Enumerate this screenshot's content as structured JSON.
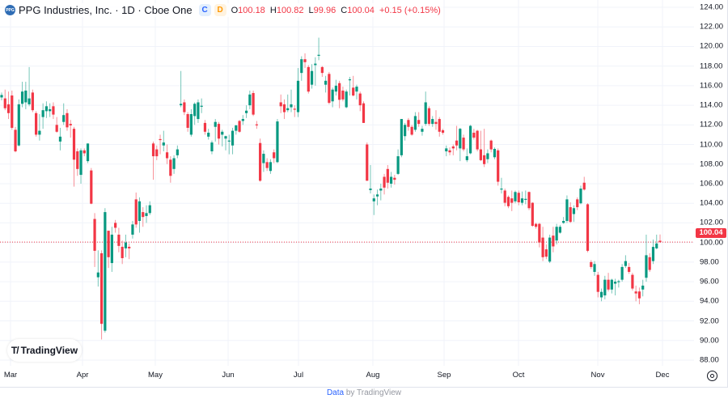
{
  "header": {
    "logo_text": "PPG",
    "title": "PPG Industries, Inc. · 1D · Cboe One",
    "badge_c": "C",
    "badge_d": "D",
    "ohlc": {
      "o_label": "O",
      "o": "100.18",
      "h_label": "H",
      "h": "100.82",
      "l_label": "L",
      "l": "99.96",
      "c_label": "C",
      "c": "100.04",
      "change": "+0.15 (+0.15%)"
    }
  },
  "price_tag": "100.04",
  "watermark": "TradingView",
  "footer": {
    "link": "Data",
    "rest": "by TradingView"
  },
  "colors": {
    "up": "#089981",
    "down": "#f23645",
    "grid": "#f0f3fa",
    "last_price": "#f23645"
  },
  "chart_data": {
    "type": "candlestick",
    "interval": "1D",
    "ylim": [
      88,
      124
    ],
    "y_ticks": [
      "124.00",
      "122.00",
      "120.00",
      "118.00",
      "116.00",
      "114.00",
      "112.00",
      "110.00",
      "108.00",
      "106.00",
      "104.00",
      "102.00",
      "100.00",
      "98.00",
      "96.00",
      "94.00",
      "92.00",
      "90.00",
      "88.00"
    ],
    "x_ticks": [
      "Mar",
      "Apr",
      "May",
      "Jun",
      "Jul",
      "Aug",
      "Sep",
      "Oct",
      "Nov",
      "Dec"
    ],
    "last_price": 100.04,
    "grid": true,
    "ohlc": [
      [
        114.8,
        115.3,
        114.5,
        115.05
      ],
      [
        114.7,
        115.6,
        113.5,
        113.7
      ],
      [
        114.1,
        115.4,
        112.6,
        113.2
      ],
      [
        115.0,
        115.5,
        111.5,
        111.7
      ],
      [
        111.5,
        111.8,
        109.2,
        109.3
      ],
      [
        109.9,
        114.6,
        109.8,
        114.1
      ],
      [
        114.15,
        116.4,
        113.8,
        115.4
      ],
      [
        114.3,
        116.4,
        113.6,
        115.5
      ],
      [
        114.1,
        117.9,
        113.9,
        114.7
      ],
      [
        115.3,
        115.6,
        113.3,
        113.5
      ],
      [
        113.2,
        113.4,
        110.8,
        111.0
      ],
      [
        111.0,
        113.1,
        110.4,
        111.4
      ],
      [
        112.8,
        114.2,
        111.6,
        113.5
      ],
      [
        113.4,
        114.4,
        112.7,
        113.9
      ],
      [
        113.4,
        114.2,
        112.8,
        113.6
      ],
      [
        113.9,
        114.3,
        112.6,
        113.05
      ],
      [
        112.0,
        112.8,
        111.2,
        111.3
      ],
      [
        110.3,
        111.7,
        109.4,
        110.8
      ],
      [
        112.3,
        114.2,
        112.0,
        113.0
      ],
      [
        113.2,
        113.6,
        111.4,
        111.75
      ],
      [
        112.1,
        112.5,
        110.7,
        111.95
      ],
      [
        111.6,
        111.8,
        105.7,
        108.45
      ],
      [
        109.3,
        109.6,
        106.8,
        107.5
      ],
      [
        106.9,
        109.6,
        106.0,
        109.4
      ],
      [
        109.4,
        109.6,
        108.8,
        109.1
      ],
      [
        108.3,
        110.1,
        108.1,
        110.1
      ],
      [
        107.35,
        107.6,
        103.9,
        103.96
      ],
      [
        102.4,
        103.0,
        97.5,
        99.15
      ],
      [
        96.45,
        99.2,
        95.5,
        96.94
      ],
      [
        98.9,
        99.2,
        90.1,
        91.7
      ],
      [
        91.0,
        103.5,
        90.8,
        103.1
      ],
      [
        101.2,
        101.2,
        97.4,
        98.5
      ],
      [
        97.9,
        101.6,
        97.0,
        100.8
      ],
      [
        102.0,
        102.3,
        101.0,
        101.5
      ],
      [
        100.8,
        101.5,
        99.0,
        99.65
      ],
      [
        99.56,
        100.2,
        97.8,
        98.4
      ],
      [
        99.4,
        100.8,
        98.5,
        100.0
      ],
      [
        99.56,
        99.9,
        98.3,
        99.4
      ],
      [
        100.8,
        102.2,
        100.4,
        101.84
      ],
      [
        104.4,
        105.1,
        101.5,
        101.84
      ],
      [
        102.2,
        104.6,
        101.0,
        104.2
      ],
      [
        103.1,
        103.6,
        101.6,
        102.6
      ],
      [
        102.7,
        103.8,
        102.0,
        103.0
      ],
      [
        103.0,
        104.2,
        102.8,
        103.8
      ],
      [
        110.1,
        110.3,
        106.4,
        108.8
      ],
      [
        109.5,
        109.9,
        108.4,
        108.8
      ],
      [
        110.55,
        111.0,
        109.0,
        110.45
      ],
      [
        109.9,
        111.4,
        109.3,
        110.2
      ],
      [
        109.2,
        110.0,
        108.0,
        108.6
      ],
      [
        108.45,
        108.8,
        106.1,
        106.8
      ],
      [
        107.5,
        108.9,
        107.0,
        108.6
      ],
      [
        108.9,
        109.9,
        108.6,
        109.5
      ],
      [
        114.0,
        117.5,
        113.8,
        114.15
      ],
      [
        114.3,
        114.6,
        113.0,
        113.3
      ],
      [
        113.1,
        113.3,
        111.3,
        111.7
      ],
      [
        111.0,
        113.6,
        110.8,
        113.1
      ],
      [
        112.9,
        114.3,
        112.0,
        114.15
      ],
      [
        112.6,
        114.6,
        112.2,
        114.3
      ],
      [
        113.85,
        114.7,
        113.2,
        113.95
      ],
      [
        112.2,
        112.5,
        111.0,
        111.3
      ],
      [
        110.8,
        111.6,
        110.5,
        111.2
      ],
      [
        109.3,
        110.4,
        109.0,
        110.2
      ],
      [
        111.8,
        112.6,
        110.3,
        112.3
      ],
      [
        112.1,
        112.3,
        110.0,
        110.6
      ],
      [
        111.0,
        111.5,
        109.8,
        111.3
      ],
      [
        110.6,
        110.9,
        109.4,
        110.85
      ],
      [
        110.3,
        111.0,
        109.0,
        110.4
      ],
      [
        109.9,
        111.7,
        109.0,
        111.4
      ],
      [
        111.4,
        112.0,
        111.0,
        111.95
      ],
      [
        112.4,
        112.5,
        111.2,
        111.3
      ],
      [
        112.4,
        113.0,
        112.0,
        112.6
      ],
      [
        113.2,
        114.0,
        112.7,
        113.45
      ],
      [
        114.0,
        115.5,
        113.6,
        115.1
      ],
      [
        115.25,
        115.5,
        112.9,
        113.05
      ],
      [
        112.05,
        112.4,
        111.6,
        111.95
      ],
      [
        110.15,
        110.6,
        106.2,
        106.3
      ],
      [
        108.1,
        109.4,
        107.2,
        109.05
      ],
      [
        108.2,
        108.6,
        107.3,
        107.6
      ],
      [
        107.3,
        108.5,
        107.0,
        108.2
      ],
      [
        109.2,
        109.5,
        108.1,
        108.6
      ],
      [
        108.2,
        112.6,
        108.1,
        112.35
      ],
      [
        114.3,
        115.1,
        113.2,
        113.9
      ],
      [
        114.1,
        114.6,
        112.6,
        113.3
      ],
      [
        113.5,
        115.1,
        113.3,
        113.7
      ],
      [
        113.8,
        115.6,
        113.3,
        114.1
      ],
      [
        113.65,
        114.0,
        112.8,
        113.55
      ],
      [
        113.3,
        117.8,
        112.8,
        116.5
      ],
      [
        117.3,
        119.0,
        116.5,
        118.7
      ],
      [
        118.7,
        119.3,
        117.8,
        118.4
      ],
      [
        117.9,
        118.1,
        115.2,
        115.4
      ],
      [
        116.1,
        118.2,
        115.7,
        117.5
      ],
      [
        118.1,
        118.9,
        116.0,
        118.25
      ],
      [
        119.05,
        120.9,
        118.6,
        119.15
      ],
      [
        117.9,
        118.0,
        116.9,
        117.3
      ],
      [
        116.1,
        117.0,
        115.3,
        116.5
      ],
      [
        117.2,
        117.4,
        114.1,
        114.25
      ],
      [
        114.4,
        115.8,
        113.8,
        115.6
      ],
      [
        115.4,
        116.6,
        115.0,
        116.0
      ],
      [
        116.26,
        116.5,
        113.7,
        114.56
      ],
      [
        115.5,
        115.9,
        114.4,
        114.6
      ],
      [
        113.8,
        115.6,
        113.7,
        115.4
      ],
      [
        116.55,
        116.9,
        115.0,
        116.65
      ],
      [
        115.8,
        117.0,
        114.9,
        115.0
      ],
      [
        115.4,
        116.1,
        114.6,
        115.9
      ],
      [
        115.2,
        115.4,
        113.4,
        114.0
      ],
      [
        114.2,
        114.4,
        112.2,
        112.2
      ],
      [
        110.0,
        110.2,
        106.3,
        106.3
      ],
      [
        105.35,
        107.9,
        105.0,
        105.5
      ],
      [
        104.2,
        104.9,
        102.8,
        104.5
      ],
      [
        104.7,
        105.4,
        103.8,
        104.9
      ],
      [
        105.3,
        106.0,
        104.3,
        105.5
      ],
      [
        106.7,
        107.0,
        104.9,
        105.6
      ],
      [
        107.5,
        107.9,
        105.5,
        106.1
      ],
      [
        106.0,
        107.2,
        105.6,
        106.7
      ],
      [
        106.6,
        106.9,
        105.9,
        106.4
      ],
      [
        107.0,
        109.5,
        106.9,
        108.8
      ],
      [
        108.9,
        112.6,
        108.7,
        112.6
      ],
      [
        110.85,
        112.2,
        110.4,
        112.0
      ],
      [
        112.5,
        112.7,
        111.4,
        111.8
      ],
      [
        111.8,
        112.0,
        110.9,
        111.0
      ],
      [
        111.5,
        113.3,
        111.3,
        112.9
      ],
      [
        112.5,
        113.3,
        111.8,
        112.1
      ],
      [
        111.3,
        111.9,
        110.9,
        111.6
      ],
      [
        112.1,
        115.4,
        111.9,
        114.3
      ],
      [
        113.7,
        113.9,
        111.9,
        112.1
      ],
      [
        112.1,
        112.9,
        111.8,
        112.6
      ],
      [
        112.3,
        113.5,
        111.5,
        112.1
      ],
      [
        112.6,
        112.8,
        110.8,
        111.3
      ],
      [
        111.45,
        111.6,
        111.0,
        111.2
      ],
      [
        109.3,
        109.9,
        108.8,
        109.6
      ],
      [
        109.4,
        109.7,
        108.9,
        109.2
      ],
      [
        109.8,
        110.0,
        108.9,
        109.6
      ],
      [
        110.4,
        111.9,
        109.4,
        109.9
      ],
      [
        109.6,
        111.7,
        108.3,
        111.6
      ],
      [
        110.7,
        111.0,
        109.3,
        109.5
      ],
      [
        108.4,
        109.6,
        108.2,
        108.8
      ],
      [
        109.1,
        112.0,
        109.0,
        111.9
      ],
      [
        111.2,
        111.6,
        110.5,
        110.7
      ],
      [
        111.4,
        111.5,
        109.3,
        109.5
      ],
      [
        109.5,
        111.4,
        108.3,
        108.4
      ],
      [
        108.9,
        111.6,
        107.7,
        108.0
      ],
      [
        108.5,
        109.5,
        108.1,
        109.1
      ],
      [
        110.4,
        110.5,
        109.2,
        109.5
      ],
      [
        108.7,
        109.7,
        108.5,
        109.55
      ],
      [
        109.4,
        109.6,
        105.8,
        106.2
      ],
      [
        105.4,
        106.6,
        105.0,
        105.5
      ],
      [
        105.3,
        105.5,
        103.7,
        104.05
      ],
      [
        104.65,
        104.8,
        103.5,
        103.7
      ],
      [
        104.5,
        105.3,
        103.2,
        104.05
      ],
      [
        104.2,
        105.3,
        104.0,
        105.15
      ],
      [
        105.07,
        105.3,
        103.8,
        104.1
      ],
      [
        104.05,
        105.2,
        103.8,
        104.5
      ],
      [
        104.35,
        105.3,
        103.9,
        104.45
      ],
      [
        105.15,
        105.2,
        103.3,
        103.5
      ],
      [
        104.05,
        104.1,
        101.6,
        101.7
      ],
      [
        101.9,
        102.0,
        101.4,
        101.6
      ],
      [
        101.9,
        102.0,
        99.5,
        100.0
      ],
      [
        100.5,
        101.6,
        98.1,
        98.5
      ],
      [
        99.3,
        99.8,
        98.3,
        98.55
      ],
      [
        98.05,
        100.8,
        97.9,
        100.5
      ],
      [
        100.7,
        101.6,
        99.0,
        99.6
      ],
      [
        100.2,
        101.9,
        99.8,
        101.6
      ],
      [
        101.0,
        101.8,
        100.9,
        101.6
      ],
      [
        102.0,
        102.6,
        101.9,
        102.2
      ],
      [
        102.2,
        104.8,
        102.0,
        104.4
      ],
      [
        103.6,
        104.1,
        102.0,
        102.1
      ],
      [
        102.9,
        103.8,
        102.1,
        103.5
      ],
      [
        104.4,
        104.6,
        103.3,
        103.6
      ],
      [
        104.0,
        105.8,
        103.9,
        105.5
      ],
      [
        106.1,
        106.7,
        105.3,
        105.4
      ],
      [
        103.9,
        104.0,
        99.0,
        99.15
      ],
      [
        98.0,
        98.2,
        97.3,
        97.5
      ],
      [
        97.0,
        98.1,
        96.6,
        97.8
      ],
      [
        96.7,
        97.0,
        94.4,
        94.96
      ],
      [
        94.4,
        95.3,
        94.0,
        94.96
      ],
      [
        94.6,
        96.6,
        94.2,
        96.2
      ],
      [
        96.2,
        96.9,
        95.0,
        95.2
      ],
      [
        95.2,
        96.3,
        94.8,
        96.2
      ],
      [
        95.8,
        96.3,
        94.6,
        96.0
      ],
      [
        95.95,
        96.2,
        95.4,
        96.05
      ],
      [
        96.2,
        97.8,
        96.0,
        97.5
      ],
      [
        97.6,
        98.7,
        97.4,
        98.1
      ],
      [
        97.5,
        97.9,
        96.8,
        97.0
      ],
      [
        96.7,
        96.9,
        95.1,
        95.3
      ],
      [
        95.0,
        95.6,
        94.0,
        94.8
      ],
      [
        95.0,
        95.4,
        93.7,
        94.3
      ],
      [
        95.2,
        96.2,
        94.5,
        95.6
      ],
      [
        96.4,
        100.8,
        96.0,
        98.7
      ],
      [
        98.5,
        98.9,
        97.0,
        97.2
      ],
      [
        98.1,
        100.3,
        97.8,
        99.55
      ],
      [
        99.4,
        100.8,
        99.3,
        99.9
      ],
      [
        100.18,
        100.82,
        99.96,
        100.04
      ]
    ]
  }
}
